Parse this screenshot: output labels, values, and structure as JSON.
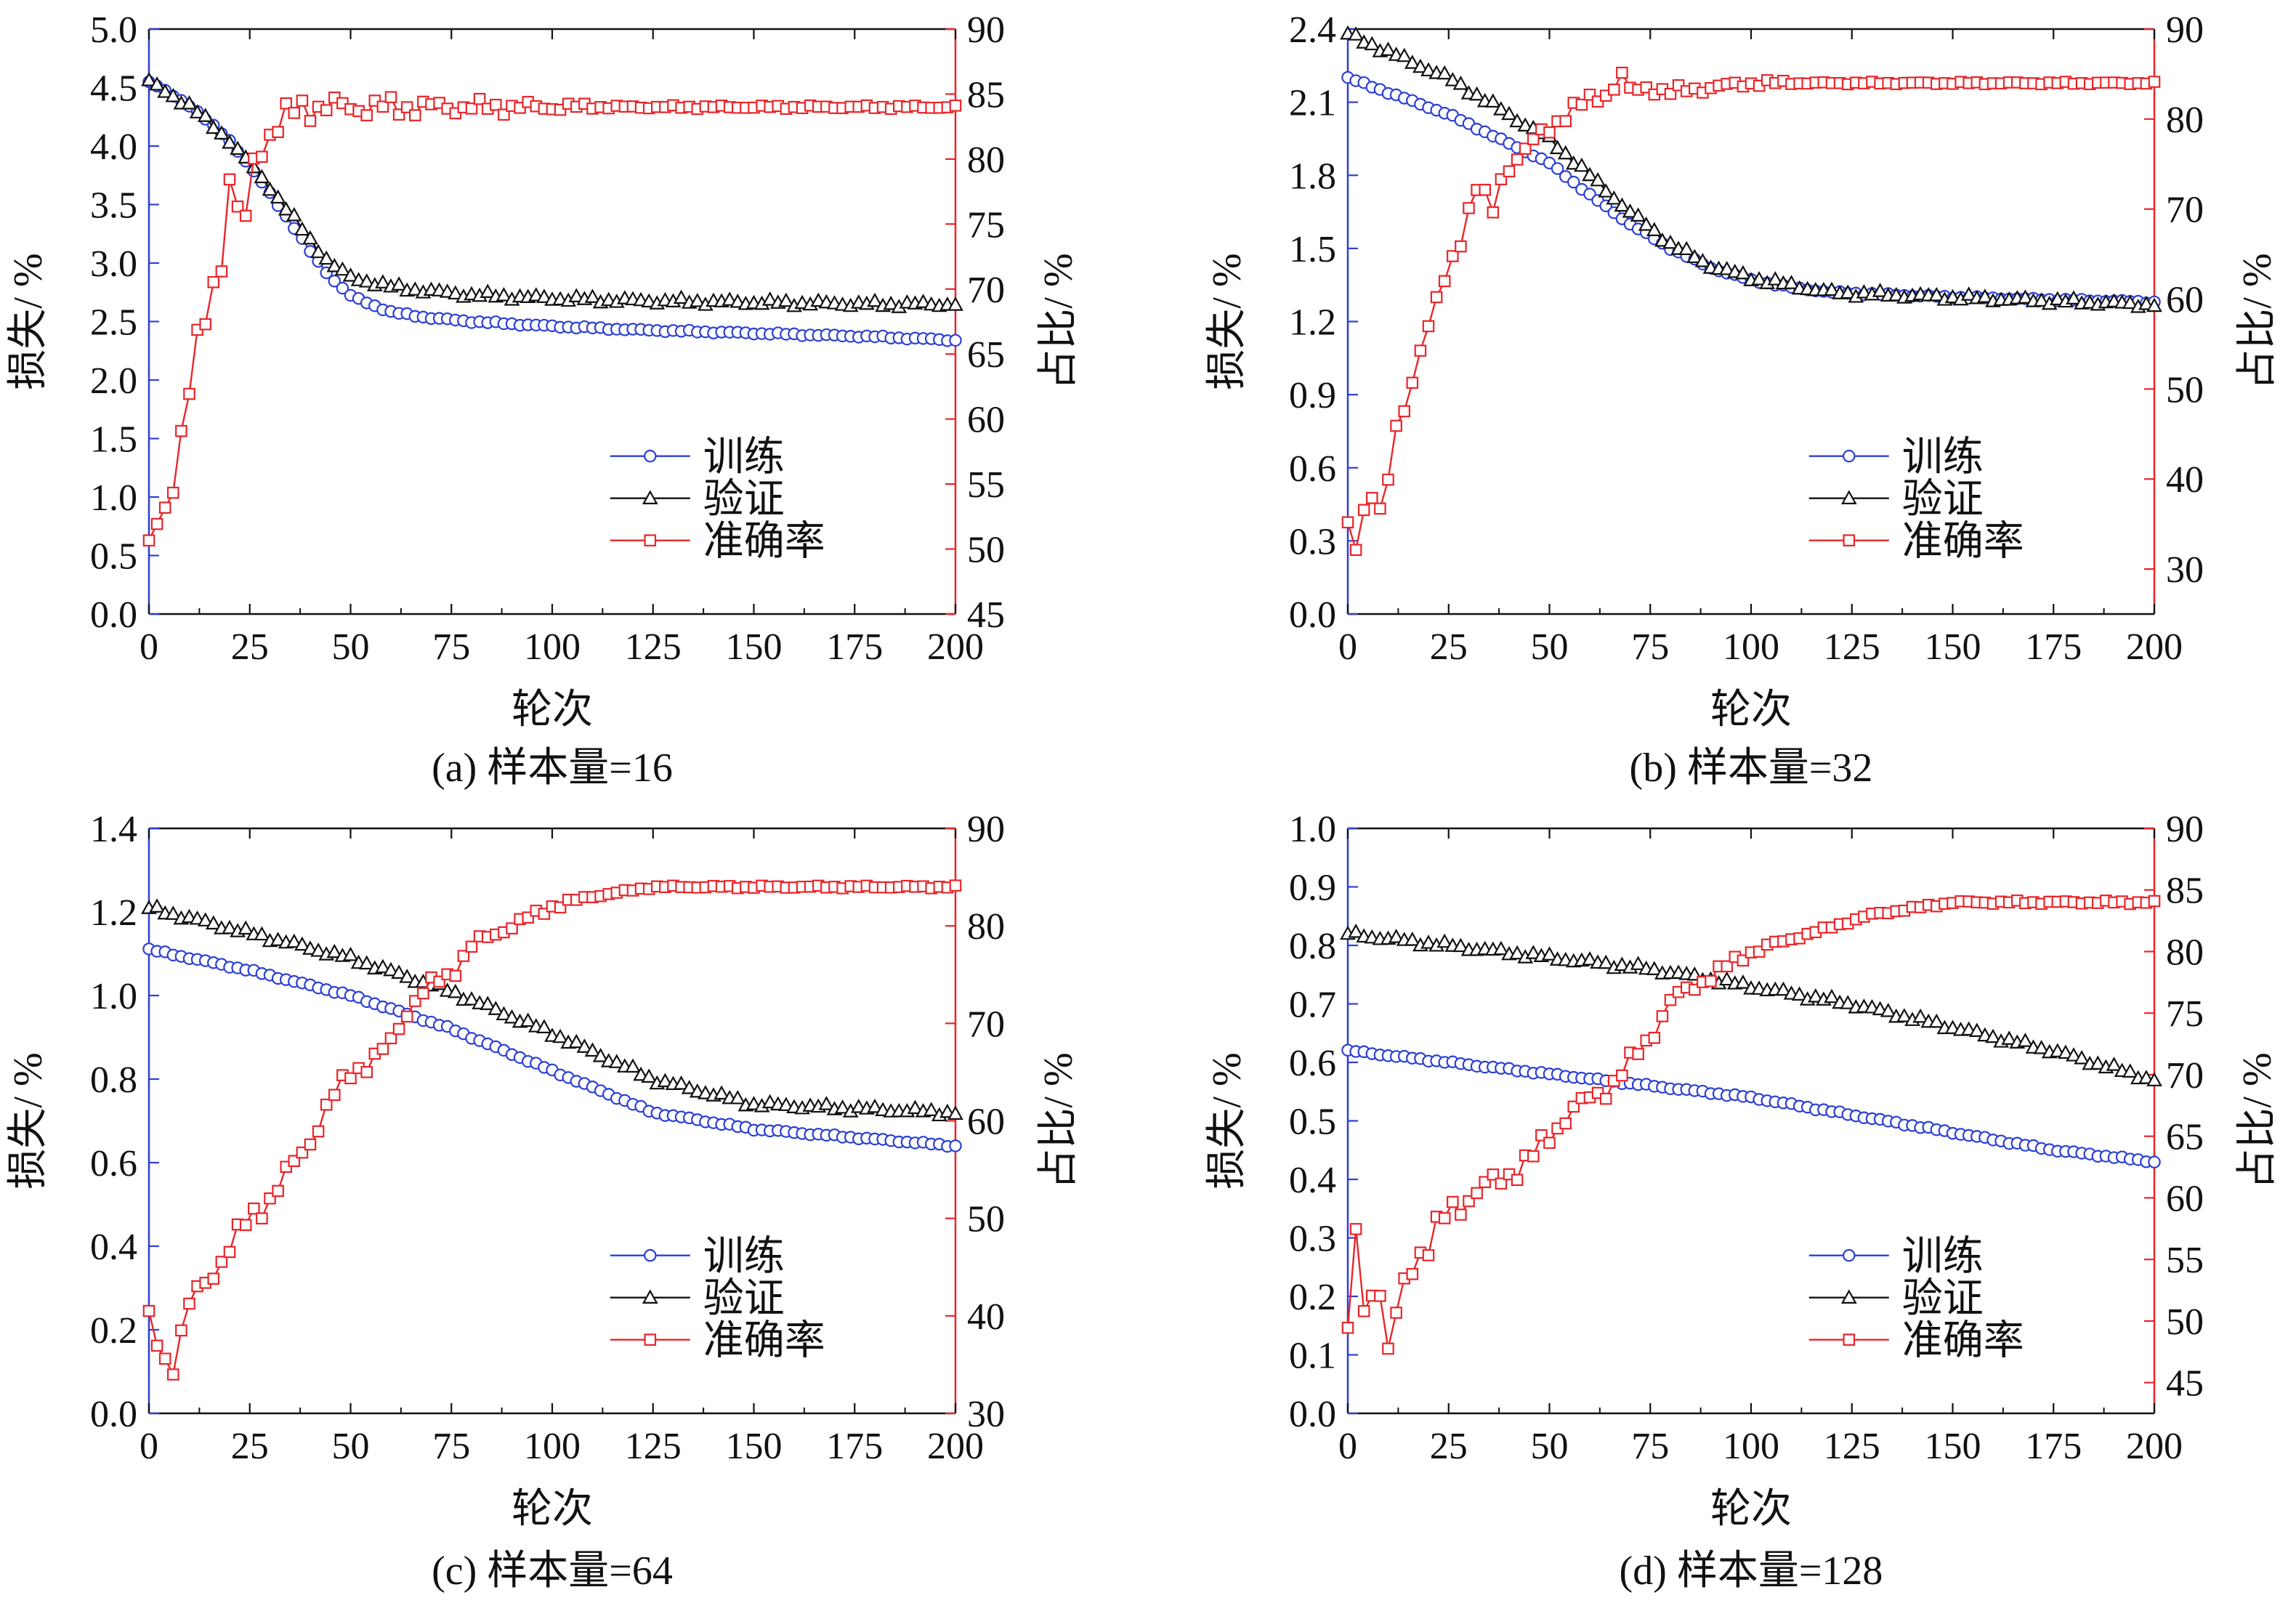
{
  "colors": {
    "train": "#2b3fd6",
    "val": "#111111",
    "acc": "#e8262a",
    "left_axis": "#2b3fd6",
    "right_axis": "#e8262a",
    "frame": "#111111"
  },
  "legend": {
    "train": "训练",
    "val": "验证",
    "acc": "准确率"
  },
  "chart_data": [
    {
      "type": "line",
      "caption": "(a) 样本量=16",
      "xlabel": "轮次",
      "ylabel": "损失/ %",
      "y2label": "占比/ %",
      "xlim": [
        0,
        200
      ],
      "xticks": [
        0,
        25,
        50,
        75,
        100,
        125,
        150,
        175,
        200
      ],
      "ylim": [
        0,
        5.0
      ],
      "yticks": [
        "0.0",
        "0.5",
        "1.0",
        "1.5",
        "2.0",
        "2.5",
        "3.0",
        "3.5",
        "4.0",
        "4.5",
        "5.0"
      ],
      "y2lim": [
        45,
        90
      ],
      "y2ticks": [
        "45",
        "50",
        "55",
        "60",
        "65",
        "70",
        "75",
        "80",
        "85",
        "90"
      ],
      "legend_position": "lower-right",
      "series": [
        {
          "name": "训练",
          "key": "train",
          "marker": "circle",
          "x": [
            0,
            10,
            20,
            30,
            40,
            45,
            50,
            60,
            70,
            80,
            100,
            120,
            140,
            160,
            180,
            200
          ],
          "y": [
            4.55,
            4.35,
            4.05,
            3.6,
            3.1,
            2.88,
            2.72,
            2.58,
            2.53,
            2.5,
            2.46,
            2.43,
            2.41,
            2.39,
            2.37,
            2.34
          ]
        },
        {
          "name": "验证",
          "key": "val",
          "marker": "triangle",
          "x": [
            0,
            10,
            20,
            30,
            40,
            45,
            50,
            60,
            70,
            80,
            100,
            120,
            140,
            160,
            180,
            200
          ],
          "y": [
            4.55,
            4.35,
            4.05,
            3.65,
            3.2,
            3.0,
            2.88,
            2.8,
            2.76,
            2.73,
            2.7,
            2.68,
            2.67,
            2.66,
            2.65,
            2.65
          ]
        },
        {
          "name": "准确率",
          "key": "acc",
          "marker": "square",
          "x": [
            0,
            3,
            5,
            7,
            9,
            11,
            13,
            15,
            17,
            19,
            20,
            22,
            24,
            26,
            28,
            30,
            32,
            35,
            38,
            40,
            45,
            50,
            100,
            150,
            200
          ],
          "y": [
            50,
            53,
            54,
            57,
            60,
            64,
            67,
            69,
            72,
            73,
            78,
            76,
            75,
            80,
            81,
            82,
            82.5,
            83.5,
            84,
            84,
            84,
            84,
            84,
            84,
            84
          ]
        }
      ]
    },
    {
      "type": "line",
      "caption": "(b) 样本量=32",
      "xlabel": "轮次",
      "ylabel": "损失/ %",
      "y2label": "占比/ %",
      "xlim": [
        0,
        200
      ],
      "xticks": [
        0,
        25,
        50,
        75,
        100,
        125,
        150,
        175,
        200
      ],
      "ylim": [
        0,
        2.4
      ],
      "yticks": [
        "0.0",
        "0.3",
        "0.6",
        "0.9",
        "1.2",
        "1.5",
        "1.8",
        "2.1",
        "2.4"
      ],
      "y2lim": [
        25,
        90
      ],
      "y2ticks": [
        "30",
        "40",
        "50",
        "60",
        "70",
        "80",
        "90"
      ],
      "legend_position": "lower-right",
      "series": [
        {
          "name": "训练",
          "key": "train",
          "marker": "circle",
          "x": [
            0,
            25,
            50,
            60,
            70,
            80,
            90,
            100,
            110,
            120,
            150,
            200
          ],
          "y": [
            2.2,
            2.05,
            1.85,
            1.72,
            1.6,
            1.5,
            1.42,
            1.37,
            1.34,
            1.32,
            1.3,
            1.28
          ]
        },
        {
          "name": "验证",
          "key": "val",
          "marker": "triangle",
          "x": [
            0,
            25,
            50,
            60,
            70,
            80,
            90,
            100,
            110,
            120,
            150,
            200
          ],
          "y": [
            2.38,
            2.2,
            1.95,
            1.8,
            1.65,
            1.52,
            1.43,
            1.38,
            1.35,
            1.32,
            1.3,
            1.27
          ]
        },
        {
          "name": "准确率",
          "key": "acc",
          "marker": "square",
          "x": [
            0,
            3,
            5,
            8,
            10,
            13,
            15,
            18,
            20,
            25,
            28,
            30,
            33,
            35,
            38,
            40,
            45,
            50,
            55,
            60,
            65,
            68,
            70,
            75,
            80,
            90,
            100,
            150,
            200
          ],
          "y": [
            34,
            32,
            41,
            36,
            40,
            47,
            49,
            55,
            57,
            63,
            67,
            70,
            74,
            68,
            73,
            75,
            77,
            79,
            81,
            82,
            83,
            85,
            83,
            83.5,
            83,
            83.5,
            84,
            84,
            84
          ]
        }
      ]
    },
    {
      "type": "line",
      "caption": "(c) 样本量=64",
      "xlabel": "轮次",
      "ylabel": "损失/ %",
      "y2label": "占比/ %",
      "xlim": [
        0,
        200
      ],
      "xticks": [
        0,
        25,
        50,
        75,
        100,
        125,
        150,
        175,
        200
      ],
      "ylim": [
        0,
        1.4
      ],
      "yticks": [
        "0.0",
        "0.2",
        "0.4",
        "0.6",
        "0.8",
        "1.0",
        "1.2",
        "1.4"
      ],
      "y2lim": [
        30,
        90
      ],
      "y2ticks": [
        "30",
        "40",
        "50",
        "60",
        "70",
        "80",
        "90"
      ],
      "legend_position": "lower-right",
      "series": [
        {
          "name": "训练",
          "key": "train",
          "marker": "circle",
          "x": [
            0,
            25,
            50,
            75,
            100,
            125,
            150,
            175,
            200
          ],
          "y": [
            1.11,
            1.06,
            1.0,
            0.92,
            0.82,
            0.72,
            0.68,
            0.66,
            0.64
          ]
        },
        {
          "name": "验证",
          "key": "val",
          "marker": "triangle",
          "x": [
            0,
            25,
            50,
            75,
            100,
            125,
            150,
            175,
            200
          ],
          "y": [
            1.21,
            1.15,
            1.09,
            1.01,
            0.91,
            0.8,
            0.74,
            0.73,
            0.72
          ]
        },
        {
          "name": "准确率",
          "key": "acc",
          "marker": "square",
          "x": [
            0,
            3,
            5,
            8,
            10,
            15,
            20,
            25,
            30,
            35,
            40,
            45,
            50,
            55,
            60,
            65,
            70,
            75,
            80,
            90,
            100,
            110,
            125,
            150,
            200
          ],
          "y": [
            39,
            37,
            34,
            38,
            41,
            44,
            47,
            50,
            52,
            55,
            58,
            62,
            65,
            66,
            68,
            72,
            74,
            75,
            78,
            80,
            82,
            83,
            84,
            84,
            84
          ]
        }
      ]
    },
    {
      "type": "line",
      "caption": "(d) 样本量=128",
      "xlabel": "轮次",
      "ylabel": "损失/ %",
      "y2label": "占比/ %",
      "xlim": [
        0,
        200
      ],
      "xticks": [
        0,
        25,
        50,
        75,
        100,
        125,
        150,
        175,
        200
      ],
      "ylim": [
        0,
        1.0
      ],
      "yticks": [
        "0.0",
        "0.1",
        "0.2",
        "0.3",
        "0.4",
        "0.5",
        "0.6",
        "0.7",
        "0.8",
        "0.9",
        "1.0"
      ],
      "y2lim": [
        42.5,
        90
      ],
      "y2ticks": [
        "45",
        "50",
        "55",
        "60",
        "65",
        "70",
        "75",
        "80",
        "85",
        "90"
      ],
      "legend_position": "lower-right",
      "series": [
        {
          "name": "训练",
          "key": "train",
          "marker": "circle",
          "x": [
            0,
            25,
            50,
            75,
            100,
            125,
            150,
            175,
            200
          ],
          "y": [
            0.62,
            0.6,
            0.58,
            0.56,
            0.54,
            0.51,
            0.48,
            0.45,
            0.43
          ]
        },
        {
          "name": "验证",
          "key": "val",
          "marker": "triangle",
          "x": [
            0,
            25,
            50,
            75,
            100,
            125,
            150,
            175,
            200
          ],
          "y": [
            0.82,
            0.8,
            0.78,
            0.76,
            0.73,
            0.7,
            0.66,
            0.62,
            0.57
          ]
        },
        {
          "name": "准确率",
          "key": "acc",
          "marker": "square",
          "x": [
            0,
            2,
            4,
            6,
            8,
            10,
            13,
            16,
            20,
            25,
            30,
            35,
            40,
            45,
            50,
            55,
            60,
            65,
            70,
            75,
            80,
            85,
            90,
            100,
            110,
            120,
            130,
            150,
            175,
            200
          ],
          "y": [
            48,
            58,
            51,
            53,
            52,
            47,
            52,
            55,
            56,
            59,
            60,
            61,
            62,
            63,
            65,
            67,
            68,
            69,
            71,
            73,
            76,
            77,
            78,
            80,
            81,
            82,
            83,
            84,
            84,
            84
          ]
        }
      ]
    }
  ]
}
